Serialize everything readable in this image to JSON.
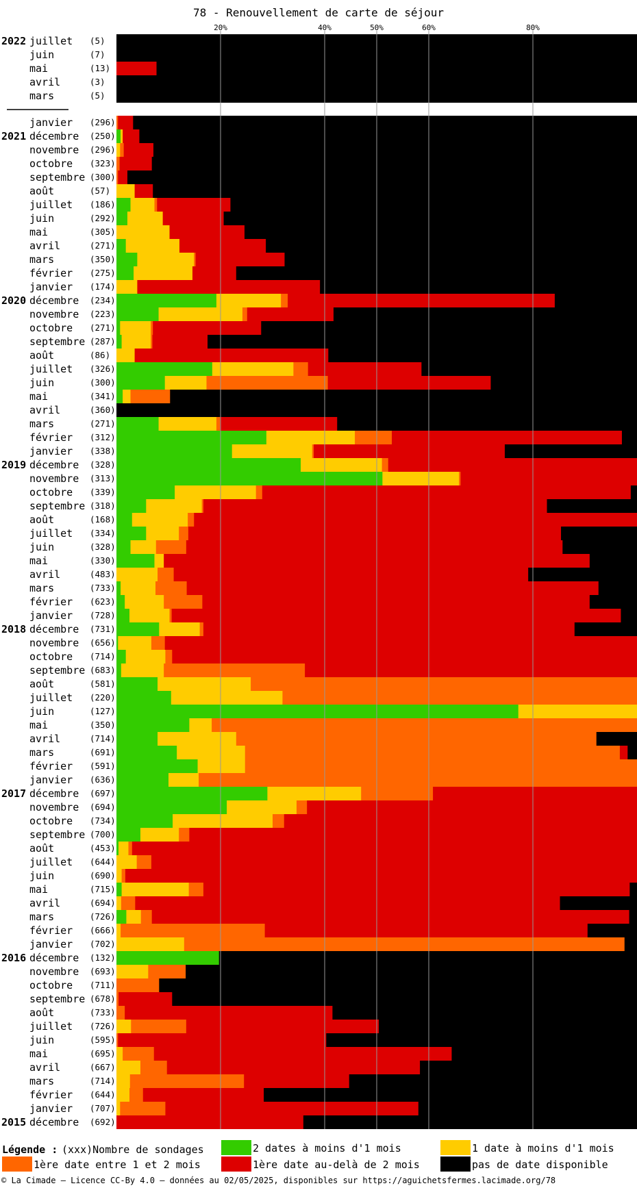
{
  "title": "78 - Renouvellement de carte de séjour",
  "colors": {
    "green": "#33cc00",
    "yellow": "#ffcc00",
    "orange": "#ff6600",
    "red": "#dd0000",
    "black": "#000000",
    "grid": "#999999"
  },
  "legend": {
    "title": "Légende :",
    "count_hint": "(xxx)Nombre de sondages",
    "items": [
      {
        "label": "2 dates à moins d'1 mois",
        "color": "#33cc00"
      },
      {
        "label": "1 date à moins d'1 mois",
        "color": "#ffcc00"
      },
      {
        "label": "1ère date entre 1 et 2 mois",
        "color": "#ff6600"
      },
      {
        "label": "1ère date au-delà de 2 mois",
        "color": "#dd0000"
      },
      {
        "label": "pas de date disponible",
        "color": "#000000"
      }
    ]
  },
  "footer": "© La Cimade — Licence CC-By 4.0 — données au 02/05/2025, disponibles sur https://aguichetsfermes.lacimade.org/78",
  "chart_data": {
    "type": "bar",
    "orientation": "horizontal-stacked",
    "title": "78 - Renouvellement de carte de séjour",
    "x_ticks": [
      {
        "value": 20,
        "label": "20%"
      },
      {
        "value": 40,
        "label": "40%"
      },
      {
        "value": 50,
        "label": "50%"
      },
      {
        "value": 60,
        "label": "60%"
      },
      {
        "value": 80,
        "label": "80%"
      }
    ],
    "xlim": [
      0,
      100
    ],
    "series_order": [
      "green",
      "yellow",
      "orange",
      "red",
      "black"
    ],
    "rows": [
      {
        "year": "2022",
        "month": "juillet",
        "count": "(5)",
        "values": [
          0,
          0,
          0,
          0,
          100
        ]
      },
      {
        "year": "",
        "month": "juin",
        "count": "(7)",
        "values": [
          0,
          0,
          0,
          0,
          100
        ]
      },
      {
        "year": "",
        "month": "mai",
        "count": "(13)",
        "values": [
          0,
          0,
          0,
          7.7,
          92.3
        ]
      },
      {
        "year": "",
        "month": "avril",
        "count": "(3)",
        "values": [
          0,
          0,
          0,
          0,
          100
        ]
      },
      {
        "year": "",
        "month": "mars",
        "count": "(5)",
        "values": [
          0,
          0,
          0,
          0,
          100
        ]
      },
      {
        "year": "",
        "month": "janvier",
        "count": "(296)",
        "values": [
          0,
          0,
          0.3,
          2.9,
          96.8
        ]
      },
      {
        "year": "2021",
        "month": "décembre",
        "count": "(250)",
        "values": [
          0.8,
          0.4,
          0,
          3.2,
          95.6
        ]
      },
      {
        "year": "",
        "month": "novembre",
        "count": "(296)",
        "values": [
          0,
          0.7,
          0.7,
          5.7,
          92.9
        ]
      },
      {
        "year": "",
        "month": "octobre",
        "count": "(323)",
        "values": [
          0,
          0,
          0.6,
          6.2,
          93.2
        ]
      },
      {
        "year": "",
        "month": "septembre",
        "count": "(300)",
        "values": [
          0,
          0,
          0.3,
          1.8,
          97.9
        ]
      },
      {
        "year": "",
        "month": "août",
        "count": "(57)",
        "values": [
          0,
          3.5,
          0,
          3.5,
          93.0
        ]
      },
      {
        "year": "",
        "month": "juillet",
        "count": "(186)",
        "values": [
          2.7,
          4.6,
          0.5,
          14.1,
          78.1
        ]
      },
      {
        "year": "",
        "month": "juin",
        "count": "(292)",
        "values": [
          2.1,
          6.8,
          0,
          11.7,
          79.4
        ]
      },
      {
        "year": "",
        "month": "mai",
        "count": "(305)",
        "values": [
          0,
          10.2,
          0,
          14.4,
          75.4
        ]
      },
      {
        "year": "",
        "month": "avril",
        "count": "(271)",
        "values": [
          1.8,
          10.3,
          0,
          16.6,
          71.3
        ]
      },
      {
        "year": "",
        "month": "mars",
        "count": "(350)",
        "values": [
          4.0,
          10.9,
          0.3,
          17.1,
          67.7
        ]
      },
      {
        "year": "",
        "month": "février",
        "count": "(275)",
        "values": [
          3.3,
          11.3,
          0,
          8.4,
          77.0
        ]
      },
      {
        "year": "",
        "month": "janvier",
        "count": "(174)",
        "values": [
          0,
          4.0,
          0,
          35.1,
          60.9
        ]
      },
      {
        "year": "2020",
        "month": "décembre",
        "count": "(234)",
        "values": [
          19.2,
          12.4,
          1.3,
          51.3,
          15.8
        ]
      },
      {
        "year": "",
        "month": "novembre",
        "count": "(223)",
        "values": [
          8.1,
          16.1,
          0.9,
          16.6,
          58.3
        ]
      },
      {
        "year": "",
        "month": "octobre",
        "count": "(271)",
        "values": [
          0.7,
          5.9,
          0.4,
          20.8,
          72.2
        ]
      },
      {
        "year": "",
        "month": "septembre",
        "count": "(287)",
        "values": [
          1.0,
          5.6,
          0.3,
          10.6,
          82.5
        ]
      },
      {
        "year": "",
        "month": "août",
        "count": "(86)",
        "values": [
          0,
          3.5,
          0,
          37.2,
          59.3
        ]
      },
      {
        "year": "",
        "month": "juillet",
        "count": "(326)",
        "values": [
          18.4,
          15.6,
          2.8,
          21.8,
          41.4
        ]
      },
      {
        "year": "",
        "month": "juin",
        "count": "(300)",
        "values": [
          9.3,
          8.0,
          23.3,
          31.3,
          28.1
        ]
      },
      {
        "year": "",
        "month": "mai",
        "count": "(341)",
        "values": [
          1.2,
          1.5,
          7.6,
          0,
          89.7
        ]
      },
      {
        "year": "",
        "month": "avril",
        "count": "(360)",
        "values": [
          0,
          0,
          0,
          0,
          100
        ]
      },
      {
        "year": "",
        "month": "mars",
        "count": "(271)",
        "values": [
          8.1,
          11.1,
          0.7,
          22.5,
          57.6
        ]
      },
      {
        "year": "",
        "month": "février",
        "count": "(312)",
        "values": [
          28.8,
          17.0,
          7.1,
          44.2,
          2.9
        ]
      },
      {
        "year": "",
        "month": "janvier",
        "count": "(338)",
        "values": [
          22.2,
          15.4,
          0.3,
          36.7,
          25.4
        ]
      },
      {
        "year": "2019",
        "month": "décembre",
        "count": "(328)",
        "values": [
          35.4,
          15.6,
          1.2,
          47.8,
          0
        ]
      },
      {
        "year": "",
        "month": "novembre",
        "count": "(313)",
        "values": [
          51.1,
          14.7,
          0.3,
          33.9,
          0
        ]
      },
      {
        "year": "",
        "month": "octobre",
        "count": "(339)",
        "values": [
          11.2,
          15.6,
          1.2,
          70.8,
          1.2
        ]
      },
      {
        "year": "",
        "month": "septembre",
        "count": "(318)",
        "values": [
          5.7,
          10.7,
          0.3,
          66.0,
          17.3
        ]
      },
      {
        "year": "",
        "month": "août",
        "count": "(168)",
        "values": [
          3.0,
          10.7,
          1.2,
          85.1,
          0
        ]
      },
      {
        "year": "",
        "month": "juillet",
        "count": "(334)",
        "values": [
          5.7,
          6.3,
          1.8,
          71.6,
          14.6
        ]
      },
      {
        "year": "",
        "month": "juin",
        "count": "(328)",
        "values": [
          2.7,
          4.9,
          5.8,
          72.3,
          14.3
        ]
      },
      {
        "year": "",
        "month": "mai",
        "count": "(330)",
        "values": [
          7.3,
          1.8,
          0,
          81.8,
          9.1
        ]
      },
      {
        "year": "",
        "month": "avril",
        "count": "(483)",
        "values": [
          0,
          7.9,
          3.1,
          68.1,
          20.9
        ]
      },
      {
        "year": "",
        "month": "mars",
        "count": "(733)",
        "values": [
          0.8,
          6.7,
          6.0,
          79.1,
          7.4
        ]
      },
      {
        "year": "",
        "month": "février",
        "count": "(623)",
        "values": [
          1.6,
          7.5,
          7.4,
          74.4,
          9.1
        ]
      },
      {
        "year": "",
        "month": "janvier",
        "count": "(728)",
        "values": [
          2.5,
          7.7,
          0.4,
          86.3,
          3.1
        ]
      },
      {
        "year": "2018",
        "month": "décembre",
        "count": "(731)",
        "values": [
          8.2,
          7.8,
          0.7,
          71.3,
          12.0
        ]
      },
      {
        "year": "",
        "month": "novembre",
        "count": "(656)",
        "values": [
          0.3,
          6.4,
          2.6,
          90.7,
          0
        ]
      },
      {
        "year": "",
        "month": "octobre",
        "count": "(714)",
        "values": [
          1.8,
          7.6,
          1.3,
          89.3,
          0
        ]
      },
      {
        "year": "",
        "month": "septembre",
        "count": "(683)",
        "values": [
          0.9,
          8.2,
          27.1,
          63.8,
          0
        ]
      },
      {
        "year": "",
        "month": "août",
        "count": "(581)",
        "values": [
          7.9,
          17.9,
          74.2,
          0,
          0
        ]
      },
      {
        "year": "",
        "month": "juillet",
        "count": "(220)",
        "values": [
          10.5,
          21.4,
          68.1,
          0,
          0
        ]
      },
      {
        "year": "",
        "month": "juin",
        "count": "(127)",
        "values": [
          77.2,
          22.8,
          0,
          0,
          0
        ]
      },
      {
        "year": "",
        "month": "mai",
        "count": "(350)",
        "values": [
          14.0,
          4.3,
          81.7,
          0,
          0
        ]
      },
      {
        "year": "",
        "month": "avril",
        "count": "(714)",
        "values": [
          7.9,
          15.1,
          69.2,
          0,
          7.8
        ]
      },
      {
        "year": "",
        "month": "mars",
        "count": "(691)",
        "values": [
          11.6,
          13.1,
          72.0,
          1.5,
          1.8
        ]
      },
      {
        "year": "",
        "month": "février",
        "count": "(591)",
        "values": [
          15.6,
          9.1,
          75.3,
          0,
          0
        ]
      },
      {
        "year": "",
        "month": "janvier",
        "count": "(636)",
        "values": [
          10.0,
          5.8,
          84.2,
          0,
          0
        ]
      },
      {
        "year": "2017",
        "month": "décembre",
        "count": "(697)",
        "values": [
          29.0,
          18.0,
          13.8,
          39.2,
          0
        ]
      },
      {
        "year": "",
        "month": "novembre",
        "count": "(694)",
        "values": [
          21.2,
          13.4,
          2.0,
          63.4,
          0
        ]
      },
      {
        "year": "",
        "month": "octobre",
        "count": "(734)",
        "values": [
          10.8,
          19.2,
          2.2,
          67.8,
          0
        ]
      },
      {
        "year": "",
        "month": "septembre",
        "count": "(700)",
        "values": [
          4.6,
          7.4,
          2.0,
          86.0,
          0
        ]
      },
      {
        "year": "",
        "month": "août",
        "count": "(453)",
        "values": [
          0.4,
          1.9,
          0.7,
          97.0,
          0
        ]
      },
      {
        "year": "",
        "month": "juillet",
        "count": "(644)",
        "values": [
          0,
          3.9,
          2.8,
          93.3,
          0
        ]
      },
      {
        "year": "",
        "month": "juin",
        "count": "(690)",
        "values": [
          0,
          1.0,
          0.7,
          98.3,
          0
        ]
      },
      {
        "year": "",
        "month": "mai",
        "count": "(715)",
        "values": [
          1.0,
          12.9,
          2.8,
          81.9,
          1.4
        ]
      },
      {
        "year": "",
        "month": "avril",
        "count": "(694)",
        "values": [
          0,
          0.9,
          2.7,
          81.6,
          14.8
        ]
      },
      {
        "year": "",
        "month": "mars",
        "count": "(726)",
        "values": [
          1.9,
          2.8,
          2.1,
          91.7,
          1.5
        ]
      },
      {
        "year": "",
        "month": "février",
        "count": "(666)",
        "values": [
          0,
          0.8,
          27.7,
          62.0,
          9.5
        ]
      },
      {
        "year": "",
        "month": "janvier",
        "count": "(702)",
        "values": [
          0,
          13.0,
          84.6,
          0,
          2.4
        ]
      },
      {
        "year": "2016",
        "month": "décembre",
        "count": "(132)",
        "values": [
          19.7,
          0,
          0,
          0,
          80.3
        ]
      },
      {
        "year": "",
        "month": "novembre",
        "count": "(693)",
        "values": [
          0,
          6.1,
          7.2,
          0,
          86.7
        ]
      },
      {
        "year": "",
        "month": "octobre",
        "count": "(711)",
        "values": [
          0,
          0,
          8.2,
          0,
          91.8
        ]
      },
      {
        "year": "",
        "month": "septembre",
        "count": "(678)",
        "values": [
          0,
          0,
          0.4,
          10.3,
          89.3
        ]
      },
      {
        "year": "",
        "month": "août",
        "count": "(733)",
        "values": [
          0,
          0,
          1.6,
          39.9,
          58.5
        ]
      },
      {
        "year": "",
        "month": "juillet",
        "count": "(726)",
        "values": [
          0,
          2.8,
          10.6,
          37.0,
          49.6
        ]
      },
      {
        "year": "",
        "month": "juin",
        "count": "(595)",
        "values": [
          0,
          0,
          0.3,
          40.0,
          59.7
        ]
      },
      {
        "year": "",
        "month": "mai",
        "count": "(695)",
        "values": [
          0,
          1.2,
          6.0,
          57.2,
          35.6
        ]
      },
      {
        "year": "",
        "month": "avril",
        "count": "(667)",
        "values": [
          0,
          4.6,
          5.1,
          48.6,
          41.7
        ]
      },
      {
        "year": "",
        "month": "mars",
        "count": "(714)",
        "values": [
          0,
          2.6,
          21.9,
          20.2,
          55.3
        ]
      },
      {
        "year": "",
        "month": "février",
        "count": "(644)",
        "values": [
          0,
          2.5,
          2.6,
          23.2,
          71.7
        ]
      },
      {
        "year": "",
        "month": "janvier",
        "count": "(707)",
        "values": [
          0,
          0.7,
          8.7,
          48.6,
          42.0
        ]
      },
      {
        "year": "2015",
        "month": "décembre",
        "count": "(692)",
        "values": [
          0,
          0,
          0,
          35.9,
          64.1
        ]
      }
    ]
  }
}
